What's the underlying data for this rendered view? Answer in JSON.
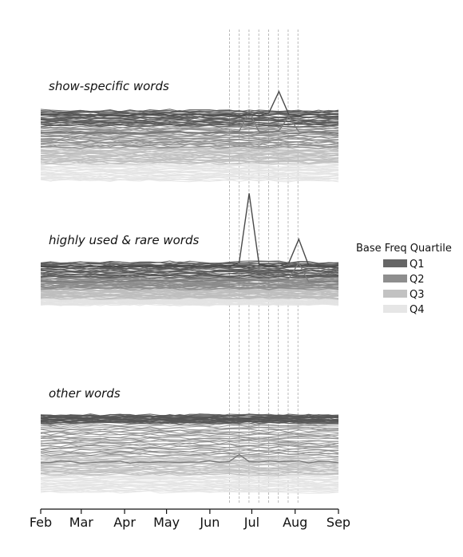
{
  "chart_data": {
    "type": "line",
    "x_ticks": [
      "Feb",
      "Mar",
      "Apr",
      "May",
      "Jun",
      "Jul",
      "Aug",
      "Sep"
    ],
    "xlim": [
      "Feb",
      "Sep"
    ],
    "grid": false,
    "event_lines_note_dates": [
      "2016-06-15",
      "2016-06-22",
      "2016-06-29",
      "2016-07-06",
      "2016-07-13",
      "2016-07-20",
      "2016-07-27",
      "2016-08-03"
    ],
    "legend": {
      "title": "Base Freq Quartile",
      "placement": "right",
      "entries": [
        {
          "label": "Q1",
          "color": "#666666"
        },
        {
          "label": "Q2",
          "color": "#8e8e8e"
        },
        {
          "label": "Q3",
          "color": "#c2c2c2"
        },
        {
          "label": "Q4",
          "color": "#e6e6e6"
        }
      ]
    },
    "panels": [
      {
        "title": "show-specific words",
        "spikes": [
          {
            "date": "2016-06-29",
            "quartile": "Q2",
            "peak": 0.9
          },
          {
            "date": "2016-07-20",
            "quartile": "Q1",
            "peak": 1.0
          },
          {
            "date": "2016-07-27",
            "quartile": "Q2",
            "peak": 0.7
          }
        ]
      },
      {
        "title": "highly used & rare words",
        "spikes": [
          {
            "date": "2016-06-29",
            "quartile": "Q1",
            "peak": 3.0
          },
          {
            "date": "2016-08-03",
            "quartile": "Q1",
            "peak": 1.2
          },
          {
            "date": "2016-08-03",
            "quartile": "Q2",
            "peak": 0.8
          }
        ]
      },
      {
        "title": "other words",
        "spikes": [
          {
            "date": "2016-06-22",
            "quartile": "Q3",
            "peak": 0.3
          }
        ]
      }
    ]
  }
}
